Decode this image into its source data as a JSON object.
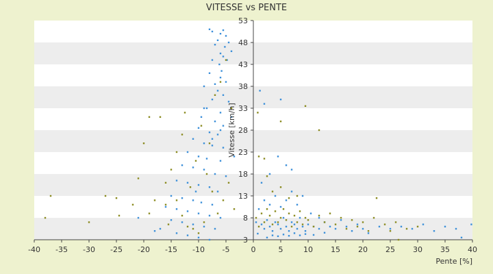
{
  "chart_data": {
    "type": "scatter",
    "title": "VITESSE vs PENTE",
    "xlabel": "Pente [%]",
    "ylabel": "Vitesse [km/h]",
    "xlim": [
      -40,
      40
    ],
    "ylim": [
      3,
      53
    ],
    "x_ticks": [
      -40,
      -35,
      -30,
      -25,
      -20,
      -15,
      -10,
      -5,
      0,
      5,
      10,
      15,
      20,
      25,
      30,
      35,
      40
    ],
    "y_ticks": [
      3,
      8,
      13,
      18,
      23,
      28,
      33,
      38,
      43,
      48,
      53
    ],
    "grid": true,
    "legend": "none",
    "colors": {
      "page_background": "#eef2cf",
      "plot_band_light": "#ffffff",
      "plot_band_dark": "#ededed",
      "series_1": "#3b8fd9",
      "series_2": "#8a8a1f",
      "axis": "#444444"
    },
    "series": [
      {
        "color": "#3b8fd9",
        "points": [
          [
            -8,
            51
          ],
          [
            -7.5,
            50.5
          ],
          [
            -6,
            50
          ],
          [
            -5.5,
            50.8
          ],
          [
            -5,
            49.5
          ],
          [
            -6.5,
            48.5
          ],
          [
            -4.5,
            48
          ],
          [
            -5.2,
            47
          ],
          [
            -7,
            47.5
          ],
          [
            -4,
            46
          ],
          [
            -6,
            45.5
          ],
          [
            -5.5,
            44.8
          ],
          [
            -7.5,
            44
          ],
          [
            -4.8,
            44
          ],
          [
            -6.2,
            43
          ],
          [
            -5.8,
            41.5
          ],
          [
            -8,
            41
          ],
          [
            -6,
            40
          ],
          [
            -5,
            39
          ],
          [
            -7,
            38.5
          ],
          [
            -9,
            38
          ],
          [
            -6.5,
            37
          ],
          [
            -5.5,
            36
          ],
          [
            -7.5,
            35
          ],
          [
            -4.5,
            34.5
          ],
          [
            -8.5,
            33
          ],
          [
            -6,
            32
          ],
          [
            -9.5,
            31
          ],
          [
            -7,
            30
          ],
          [
            -5.5,
            29
          ],
          [
            -10,
            28.5
          ],
          [
            -8,
            27.5
          ],
          [
            -6.5,
            27
          ],
          [
            -11,
            26
          ],
          [
            -9,
            25
          ],
          [
            -7.5,
            24.5
          ],
          [
            -5.5,
            24
          ],
          [
            -12,
            23
          ],
          [
            -10,
            22
          ],
          [
            -8.5,
            21.5
          ],
          [
            -6,
            21
          ],
          [
            -13,
            20
          ],
          [
            -11,
            19.5
          ],
          [
            -9,
            19
          ],
          [
            -7,
            18
          ],
          [
            -5,
            17.5
          ],
          [
            -14,
            16.5
          ],
          [
            -12,
            16
          ],
          [
            -10,
            15.5
          ],
          [
            -8,
            15
          ],
          [
            -6.5,
            14
          ],
          [
            -15,
            13
          ],
          [
            -13,
            12.5
          ],
          [
            -11,
            12
          ],
          [
            -9.5,
            11.5
          ],
          [
            -7.5,
            11
          ],
          [
            -16,
            10.5
          ],
          [
            -14,
            10
          ],
          [
            -12,
            9.5
          ],
          [
            -10,
            9
          ],
          [
            -8,
            8.5
          ],
          [
            -6,
            8
          ],
          [
            -15,
            7.5
          ],
          [
            -13,
            7
          ],
          [
            -11,
            6.5
          ],
          [
            -9,
            6
          ],
          [
            -7,
            5.5
          ],
          [
            -17,
            5.5
          ],
          [
            -14,
            4.5
          ],
          [
            -12,
            4
          ],
          [
            -10,
            3.5
          ],
          [
            -8,
            3
          ],
          [
            -18,
            5
          ],
          [
            -21,
            8
          ],
          [
            -6,
            28
          ],
          [
            -4,
            31
          ],
          [
            -7.5,
            26
          ],
          [
            -9,
            33
          ],
          [
            -10.5,
            14
          ],
          [
            -3.5,
            22
          ],
          [
            0.5,
            7
          ],
          [
            1.5,
            6.5
          ],
          [
            2,
            5.5
          ],
          [
            2.5,
            7.5
          ],
          [
            3,
            6
          ],
          [
            3.5,
            5
          ],
          [
            4,
            7
          ],
          [
            4.5,
            6.5
          ],
          [
            5,
            5.5
          ],
          [
            5.5,
            8
          ],
          [
            6,
            6
          ],
          [
            6.5,
            5
          ],
          [
            7,
            7
          ],
          [
            7.5,
            6.5
          ],
          [
            8,
            5.5
          ],
          [
            8.5,
            8
          ],
          [
            9,
            6
          ],
          [
            9.5,
            5
          ],
          [
            10,
            6.5
          ],
          [
            11,
            6
          ],
          [
            12,
            5.5
          ],
          [
            13,
            7
          ],
          [
            14,
            6
          ],
          [
            15,
            5.5
          ],
          [
            16,
            7.5
          ],
          [
            17,
            6
          ],
          [
            18,
            5
          ],
          [
            19,
            6.5
          ],
          [
            20,
            5.5
          ],
          [
            21,
            4.5
          ],
          [
            23,
            6
          ],
          [
            25,
            5.5
          ],
          [
            27,
            6
          ],
          [
            29,
            5.5
          ],
          [
            31,
            6.5
          ],
          [
            33,
            5
          ],
          [
            35,
            6
          ],
          [
            37,
            5.5
          ],
          [
            38,
            3.5
          ],
          [
            39.8,
            6.5
          ],
          [
            1,
            10
          ],
          [
            2,
            12
          ],
          [
            3,
            11
          ],
          [
            4,
            13
          ],
          [
            5,
            10.5
          ],
          [
            6,
            12
          ],
          [
            7,
            14
          ],
          [
            8,
            11
          ],
          [
            1.5,
            16
          ],
          [
            3,
            18
          ],
          [
            4.5,
            22
          ],
          [
            6,
            20
          ],
          [
            7,
            19
          ],
          [
            9,
            13
          ],
          [
            10.5,
            9
          ],
          [
            12,
            8
          ],
          [
            2,
            34
          ],
          [
            5,
            35
          ],
          [
            1.2,
            37
          ],
          [
            2.5,
            3.5
          ],
          [
            3.5,
            4
          ],
          [
            4.5,
            3.8
          ],
          [
            5.5,
            4.2
          ],
          [
            6.5,
            3.9
          ],
          [
            7.5,
            4.5
          ],
          [
            8.5,
            4
          ],
          [
            9.5,
            4.3
          ],
          [
            11,
            4.1
          ],
          [
            13,
            4.6
          ],
          [
            0.8,
            4.4
          ]
        ]
      },
      {
        "color": "#8a8a1f",
        "points": [
          [
            -37,
            13
          ],
          [
            -38,
            8
          ],
          [
            -30,
            7
          ],
          [
            -27,
            13
          ],
          [
            -25,
            12.5
          ],
          [
            -24.5,
            8.5
          ],
          [
            -22,
            11
          ],
          [
            -21,
            17
          ],
          [
            -20,
            25
          ],
          [
            -19,
            31
          ],
          [
            -17,
            31
          ],
          [
            -18,
            12
          ],
          [
            -16,
            11
          ],
          [
            -15,
            19
          ],
          [
            -14,
            23
          ],
          [
            -13,
            27
          ],
          [
            -12.5,
            32
          ],
          [
            -11.5,
            15
          ],
          [
            -10.5,
            21
          ],
          [
            -9.5,
            29
          ],
          [
            -8.5,
            18
          ],
          [
            -7.5,
            14
          ],
          [
            -6.5,
            9
          ],
          [
            -5.5,
            12
          ],
          [
            -4.5,
            16
          ],
          [
            -3.5,
            10
          ],
          [
            -9,
            7
          ],
          [
            -11,
            5.5
          ],
          [
            -13,
            8.5
          ],
          [
            -15.5,
            6.5
          ],
          [
            -7,
            36
          ],
          [
            -5,
            44
          ],
          [
            -6,
            39
          ],
          [
            -4,
            33
          ],
          [
            -8,
            25
          ],
          [
            -10,
            4.5
          ],
          [
            -12,
            6
          ],
          [
            -14,
            12
          ],
          [
            -16,
            16
          ],
          [
            -19,
            9
          ],
          [
            0.5,
            8
          ],
          [
            1,
            6
          ],
          [
            1.5,
            9
          ],
          [
            2,
            7
          ],
          [
            2.5,
            10
          ],
          [
            3,
            8.5
          ],
          [
            3.5,
            6.5
          ],
          [
            4,
            9.5
          ],
          [
            4.5,
            7
          ],
          [
            5,
            8
          ],
          [
            5.5,
            10
          ],
          [
            6,
            7.5
          ],
          [
            6.5,
            9
          ],
          [
            7,
            6
          ],
          [
            7.5,
            8.5
          ],
          [
            8,
            7
          ],
          [
            8.5,
            9.5
          ],
          [
            9,
            6.5
          ],
          [
            9.5,
            8
          ],
          [
            10,
            7.5
          ],
          [
            11,
            6
          ],
          [
            12,
            8.5
          ],
          [
            13,
            7
          ],
          [
            14,
            9
          ],
          [
            15,
            6.5
          ],
          [
            16,
            8
          ],
          [
            17,
            5.5
          ],
          [
            18,
            7.5
          ],
          [
            19,
            6
          ],
          [
            20,
            7
          ],
          [
            21,
            5
          ],
          [
            22,
            8
          ],
          [
            22.5,
            12.5
          ],
          [
            24,
            6.5
          ],
          [
            25,
            5
          ],
          [
            26,
            7
          ],
          [
            26.5,
            3
          ],
          [
            28,
            5.5
          ],
          [
            30,
            6
          ],
          [
            2,
            21.5
          ],
          [
            3.5,
            14
          ],
          [
            5,
            15
          ],
          [
            6.5,
            12.5
          ],
          [
            8,
            13
          ],
          [
            9.5,
            33.5
          ],
          [
            12,
            28
          ],
          [
            5,
            30
          ],
          [
            1,
            22
          ],
          [
            0.8,
            32
          ],
          [
            2.5,
            17.5
          ]
        ]
      }
    ]
  }
}
